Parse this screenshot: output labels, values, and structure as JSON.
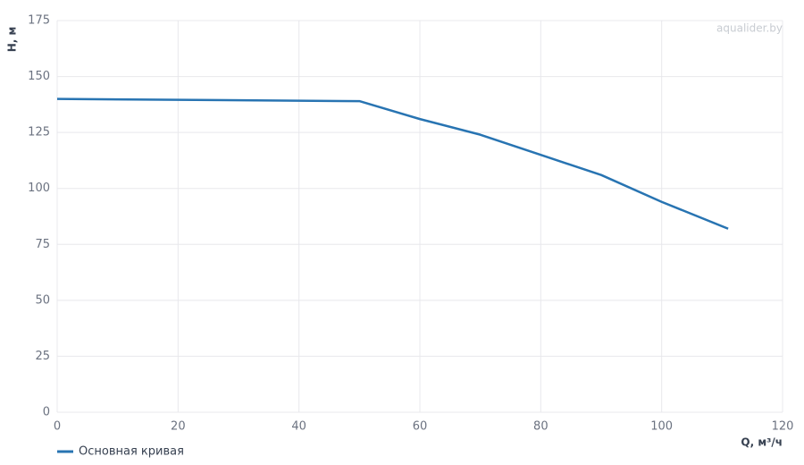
{
  "chart_data": {
    "type": "line",
    "x_label": "Q, м³/ч",
    "y_label": "H, м",
    "watermark": "aqualider.by",
    "x": [
      0,
      50,
      60,
      70,
      80,
      90,
      100,
      111
    ],
    "series": [
      {
        "name": "Основная кривая",
        "color": "#2874b2",
        "values": [
          140,
          139,
          131,
          124,
          115,
          106,
          94,
          82
        ]
      }
    ],
    "xlim": [
      0,
      120
    ],
    "xticks": [
      0,
      20,
      40,
      60,
      80,
      100,
      120
    ],
    "ylim": [
      0,
      175
    ],
    "yticks": [
      0,
      25,
      50,
      75,
      100,
      125,
      150,
      175
    ],
    "grid": true,
    "legend": "bottom-left"
  }
}
